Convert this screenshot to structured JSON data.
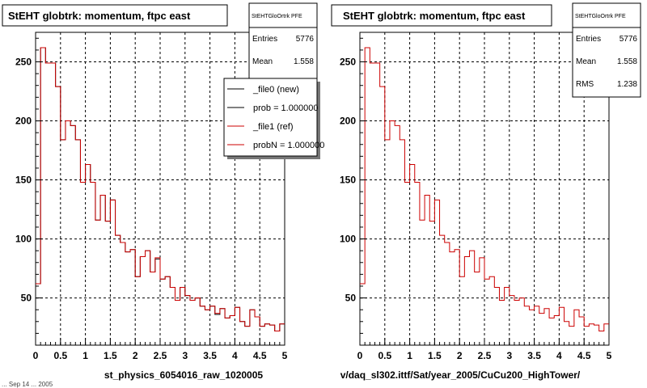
{
  "footer_text": "... Sep 14 ... 2005",
  "chart_data": [
    {
      "type": "line",
      "title": "StEHT globtrk: momentum, ftpc east",
      "xlabel": "st_physics_6054016_raw_1020005",
      "ylabel": "",
      "xlim": [
        0,
        5
      ],
      "ylim": [
        10,
        275
      ],
      "x_ticks": [
        "0",
        "0.5",
        "1",
        "1.5",
        "2",
        "2.5",
        "3",
        "3.5",
        "4",
        "4.5",
        "5"
      ],
      "y_ticks": [
        "50",
        "100",
        "150",
        "200",
        "250"
      ],
      "grid": true,
      "bin_width": 0.1,
      "stats": {
        "header": "StEHTGloOrtrk PFE",
        "rows": [
          {
            "label": "Entries",
            "value": "5776"
          },
          {
            "label": "Mean",
            "value": "1.558"
          }
        ]
      },
      "legend": {
        "placement": "top-right",
        "entries": [
          {
            "label": "_file0 (new)",
            "color": "#000000"
          },
          {
            "label": "prob = 1.000000",
            "color": "#000000"
          },
          {
            "label": "_file1 (ref)",
            "color": "#cc0000"
          },
          {
            "label": "probN = 1.000000",
            "color": "#cc0000"
          }
        ]
      },
      "series": [
        {
          "color": "#000000",
          "x": [
            0.05,
            0.15,
            0.25,
            0.35,
            0.45,
            0.55,
            0.65,
            0.75,
            0.85,
            0.95,
            1.05,
            1.15,
            1.25,
            1.35,
            1.45,
            1.55,
            1.65,
            1.75,
            1.85,
            1.95,
            2.05,
            2.15,
            2.25,
            2.35,
            2.45,
            2.55,
            2.65,
            2.75,
            2.85,
            2.95,
            3.05,
            3.15,
            3.25,
            3.35,
            3.45,
            3.55,
            3.65,
            3.75,
            3.85,
            3.95,
            4.05,
            4.15,
            4.25,
            4.35,
            4.45,
            4.55,
            4.65,
            4.75,
            4.85,
            4.95
          ],
          "values": [
            62,
            262,
            249,
            249,
            229,
            184,
            200,
            196,
            184,
            148,
            163,
            148,
            116,
            137,
            115,
            133,
            103,
            97,
            89,
            91,
            68,
            85,
            90,
            72,
            83,
            66,
            68,
            59,
            48,
            59,
            52,
            48,
            50,
            43,
            40,
            43,
            36,
            41,
            33,
            35,
            42,
            30,
            26,
            40,
            34,
            26,
            28,
            27,
            22,
            28
          ]
        },
        {
          "color": "#cc0000",
          "x": [
            0.05,
            0.15,
            0.25,
            0.35,
            0.45,
            0.55,
            0.65,
            0.75,
            0.85,
            0.95,
            1.05,
            1.15,
            1.25,
            1.35,
            1.45,
            1.55,
            1.65,
            1.75,
            1.85,
            1.95,
            2.05,
            2.15,
            2.25,
            2.35,
            2.45,
            2.55,
            2.65,
            2.75,
            2.85,
            2.95,
            3.05,
            3.15,
            3.25,
            3.35,
            3.45,
            3.55,
            3.65,
            3.75,
            3.85,
            3.95,
            4.05,
            4.15,
            4.25,
            4.35,
            4.45,
            4.55,
            4.65,
            4.75,
            4.85,
            4.95
          ],
          "values": [
            62,
            262,
            249,
            249,
            229,
            184,
            200,
            196,
            184,
            148,
            163,
            148,
            116,
            137,
            115,
            133,
            103,
            97,
            89,
            91,
            68,
            85,
            90,
            72,
            84,
            66,
            68,
            59,
            48,
            59,
            52,
            48,
            50,
            43,
            40,
            43,
            37,
            41,
            33,
            35,
            42,
            30,
            26,
            40,
            34,
            26,
            28,
            27,
            22,
            28
          ]
        }
      ]
    },
    {
      "type": "line",
      "title": "StEHT globtrk: momentum, ftpc east",
      "xlabel": "v/daq_sl302.ittf/Sat/year_2005/CuCu200_HighTower/",
      "ylabel": "",
      "xlim": [
        0,
        5
      ],
      "ylim": [
        10,
        275
      ],
      "x_ticks": [
        "0",
        "0.5",
        "1",
        "1.5",
        "2",
        "2.5",
        "3",
        "3.5",
        "4",
        "4.5",
        "5"
      ],
      "y_ticks": [
        "50",
        "100",
        "150",
        "200",
        "250"
      ],
      "grid": true,
      "bin_width": 0.1,
      "stats": {
        "header": "StEHTGloOrtrk PFE",
        "rows": [
          {
            "label": "Entries",
            "value": "5776"
          },
          {
            "label": "Mean",
            "value": "1.558"
          },
          {
            "label": "RMS",
            "value": "1.238"
          }
        ]
      },
      "series": [
        {
          "color": "#cc0000",
          "x": [
            0.05,
            0.15,
            0.25,
            0.35,
            0.45,
            0.55,
            0.65,
            0.75,
            0.85,
            0.95,
            1.05,
            1.15,
            1.25,
            1.35,
            1.45,
            1.55,
            1.65,
            1.75,
            1.85,
            1.95,
            2.05,
            2.15,
            2.25,
            2.35,
            2.45,
            2.55,
            2.65,
            2.75,
            2.85,
            2.95,
            3.05,
            3.15,
            3.25,
            3.35,
            3.45,
            3.55,
            3.65,
            3.75,
            3.85,
            3.95,
            4.05,
            4.15,
            4.25,
            4.35,
            4.45,
            4.55,
            4.65,
            4.75,
            4.85,
            4.95
          ],
          "values": [
            62,
            262,
            249,
            249,
            229,
            184,
            200,
            196,
            184,
            148,
            163,
            148,
            116,
            137,
            115,
            133,
            103,
            97,
            89,
            91,
            68,
            85,
            90,
            72,
            84,
            66,
            68,
            59,
            48,
            59,
            52,
            48,
            50,
            43,
            40,
            43,
            37,
            41,
            33,
            35,
            42,
            30,
            26,
            40,
            34,
            26,
            28,
            27,
            22,
            28
          ]
        }
      ]
    }
  ]
}
